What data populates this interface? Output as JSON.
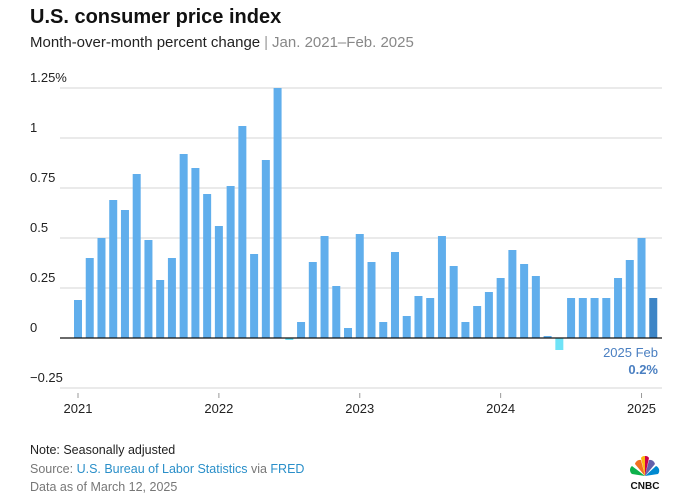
{
  "title": "U.S. consumer price index",
  "subtitle": "Month-over-month percent change",
  "subtitle_separator": "|",
  "date_range": "Jan. 2021–Feb. 2025",
  "footer": {
    "note": "Note: Seasonally adjusted",
    "source_prefix": "Source: ",
    "source_bls": "U.S. Bureau of Labor Statistics",
    "source_via": " via ",
    "source_fred": "FRED",
    "as_of": "Data as of March 12, 2025",
    "logo_text": "CNBC"
  },
  "colors": {
    "bar": "#60aeec",
    "latest": "#3d85c6",
    "negative": "#6fe3f7",
    "annotation": "#4a7fc1"
  },
  "chart_data": {
    "type": "bar",
    "title": "U.S. consumer price index",
    "ylim": [
      -0.25,
      1.25
    ],
    "yticks": [
      1.25,
      1,
      0.75,
      0.5,
      0.25,
      0,
      -0.25
    ],
    "ytick_labels": [
      "1.25%",
      "1",
      "0.75",
      "0.5",
      "0.25",
      "0",
      "−0.25"
    ],
    "xtick_labels": [
      "2021",
      "2022",
      "2023",
      "2024",
      "2025"
    ],
    "grid": true,
    "start": "2021-01",
    "values": [
      0.19,
      0.4,
      0.5,
      0.69,
      0.64,
      0.82,
      0.49,
      0.29,
      0.4,
      0.92,
      0.85,
      0.72,
      0.56,
      0.76,
      1.06,
      0.42,
      0.89,
      1.25,
      -0.01,
      0.08,
      0.38,
      0.51,
      0.26,
      0.05,
      0.52,
      0.38,
      0.08,
      0.43,
      0.11,
      0.21,
      0.2,
      0.51,
      0.36,
      0.08,
      0.16,
      0.23,
      0.3,
      0.44,
      0.37,
      0.31,
      0.01,
      -0.06,
      0.2,
      0.2,
      0.2,
      0.2,
      0.3,
      0.39,
      0.5,
      0.2
    ],
    "annotation": {
      "label": "2025 Feb",
      "value": "0.2%"
    }
  }
}
